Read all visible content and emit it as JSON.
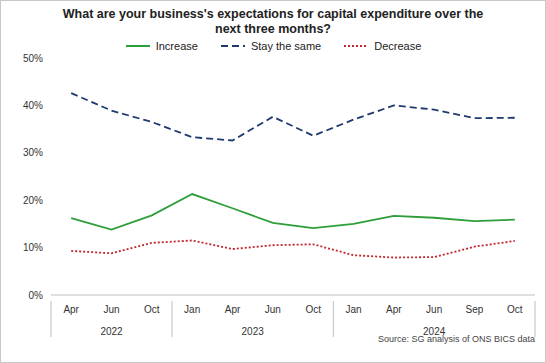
{
  "chart_data": {
    "type": "line",
    "title": "What are your business's expectations for capital expenditure over the next three months?",
    "source": "Source: SG analysis of ONS BICS data",
    "categories": [
      "Apr",
      "Jun",
      "Oct",
      "Jan",
      "Apr",
      "Jun",
      "Oct",
      "Jan",
      "Apr",
      "Jun",
      "Sep",
      "Oct"
    ],
    "category_years": [
      "2022",
      "2022",
      "2022",
      "2023",
      "2023",
      "2023",
      "2023",
      "2024",
      "2024",
      "2024",
      "2024",
      "2024"
    ],
    "series": [
      {
        "name": "Increase",
        "color": "#2e9e3a",
        "line_style": "solid",
        "values": [
          16.2,
          13.8,
          16.8,
          21.3,
          18.3,
          15.2,
          14.1,
          15.0,
          16.7,
          16.3,
          15.6,
          15.9
        ]
      },
      {
        "name": "Stay the same",
        "color": "#1f3a6e",
        "line_style": "dashed",
        "values": [
          42.6,
          38.9,
          36.5,
          33.3,
          32.6,
          37.6,
          33.6,
          37.0,
          40.0,
          39.1,
          37.3,
          37.4
        ]
      },
      {
        "name": "Decrease",
        "color": "#c0262d",
        "line_style": "dotted",
        "values": [
          9.3,
          8.8,
          11.0,
          11.5,
          9.7,
          10.5,
          10.7,
          8.4,
          7.9,
          8.0,
          10.2,
          11.4
        ]
      }
    ],
    "ylim": [
      0,
      50
    ],
    "yticks": [
      {
        "value": 0,
        "label": "0%"
      },
      {
        "value": 10,
        "label": "10%"
      },
      {
        "value": 20,
        "label": "20%"
      },
      {
        "value": 30,
        "label": "30%"
      },
      {
        "value": 40,
        "label": "40%"
      },
      {
        "value": 50,
        "label": "50%"
      }
    ],
    "grid": false,
    "legend": "top"
  }
}
